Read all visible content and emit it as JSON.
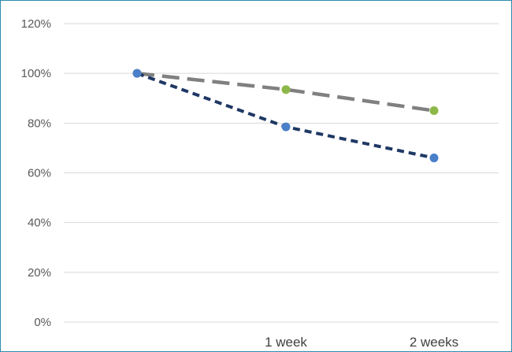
{
  "chart_data": {
    "type": "line",
    "title": "",
    "xlabel": "",
    "ylabel": "",
    "categories": [
      "",
      "1 week",
      "2 weeks"
    ],
    "ylim": [
      0,
      120
    ],
    "yticks": [
      0,
      20,
      40,
      60,
      80,
      100,
      120
    ],
    "ytick_labels": [
      "0%",
      "20%",
      "40%",
      "60%",
      "80%",
      "100%",
      "120%"
    ],
    "grid": true,
    "legend": "none",
    "series": [
      {
        "values": [
          100,
          93.5,
          85
        ],
        "line_color": "#808080",
        "marker_color": "#8db849",
        "line_style": "long-dash"
      },
      {
        "values": [
          100,
          78.5,
          66
        ],
        "line_color": "#1f3864",
        "marker_color": "#4a7fc9",
        "line_style": "short-dash"
      }
    ]
  }
}
